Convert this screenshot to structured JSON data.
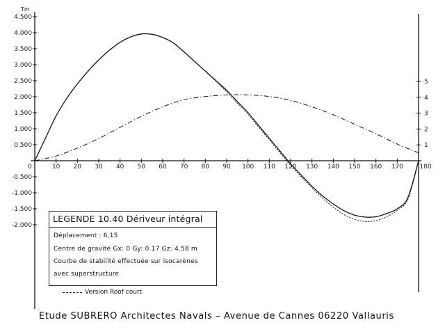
{
  "chart_data": {
    "type": "line",
    "unit_label": "Tm",
    "x_ticks": [
      "0",
      "10",
      "20",
      "30",
      "40",
      "50",
      "60",
      "70",
      "80",
      "90",
      "100",
      "110",
      "120",
      "130",
      "140",
      "150",
      "160",
      "170",
      "180"
    ],
    "y_ticks_left": [
      "4.500",
      "4.000",
      "3.500",
      "3.000",
      "2.500",
      "2.000",
      "1.500",
      "1.000",
      "0.500",
      "-0.500",
      "-1.000",
      "-1.500",
      "-2.000"
    ],
    "y_ticks_right": [
      "5",
      "4",
      "3",
      "2",
      "1"
    ],
    "xlim": [
      0,
      180
    ],
    "ylim_left": [
      -2.6,
      4.5
    ],
    "ylim_right": [
      0,
      5.3
    ],
    "series": [
      {
        "axis": "left",
        "style": "solid",
        "x": [
          0,
          5,
          10,
          15,
          20,
          25,
          30,
          35,
          40,
          45,
          50,
          55,
          60,
          65,
          70,
          75,
          80,
          85,
          90,
          95,
          100,
          105,
          110,
          115,
          120,
          125,
          130,
          135,
          140,
          145,
          150,
          155,
          160,
          165,
          170,
          175,
          180
        ],
        "y": [
          0,
          0.7,
          1.4,
          1.95,
          2.4,
          2.8,
          3.15,
          3.45,
          3.7,
          3.87,
          3.96,
          3.95,
          3.85,
          3.68,
          3.4,
          3.1,
          2.8,
          2.5,
          2.2,
          1.85,
          1.5,
          1.1,
          0.7,
          0.3,
          -0.1,
          -0.45,
          -0.8,
          -1.1,
          -1.35,
          -1.56,
          -1.7,
          -1.76,
          -1.75,
          -1.65,
          -1.5,
          -1.15,
          0
        ]
      },
      {
        "axis": "left",
        "style": "dashed",
        "x": [
          80,
          85,
          90,
          95,
          100,
          105,
          110,
          115,
          120,
          125,
          130,
          135,
          140,
          145,
          150,
          155,
          160,
          165,
          170,
          175,
          180
        ],
        "y": [
          2.8,
          2.48,
          2.15,
          1.8,
          1.45,
          1.05,
          0.65,
          0.25,
          -0.15,
          -0.5,
          -0.85,
          -1.17,
          -1.45,
          -1.68,
          -1.83,
          -1.9,
          -1.87,
          -1.75,
          -1.55,
          -1.2,
          0
        ]
      },
      {
        "axis": "right",
        "style": "dashdot",
        "x": [
          0,
          10,
          20,
          30,
          40,
          50,
          60,
          70,
          80,
          90,
          100,
          110,
          120,
          130,
          140,
          150,
          160,
          170,
          180
        ],
        "y": [
          0,
          0.3,
          0.8,
          1.4,
          2.1,
          2.8,
          3.4,
          3.85,
          4.05,
          4.15,
          4.15,
          4.05,
          3.8,
          3.4,
          2.9,
          2.3,
          1.7,
          1.05,
          0.5
        ]
      }
    ]
  },
  "legend": {
    "title": "LEGENDE 10.40  Dériveur intégral",
    "line1": "Déplacement :      6,15",
    "line2": "Centre de gravité  Gx: 0   Gy: 0.17  Gz: 4.58 m",
    "line3": "Courbe de stabilité effectuée sur isocarènes",
    "line4": "avec  superstructure",
    "dashed_label": "Version  Roof court"
  },
  "footer": "Etude  SUBRERO   Architectes Navals  –  Avenue de Cannes  06220  Vallauris",
  "colors": {
    "ink": "#111111",
    "paper": "#ffffff"
  }
}
